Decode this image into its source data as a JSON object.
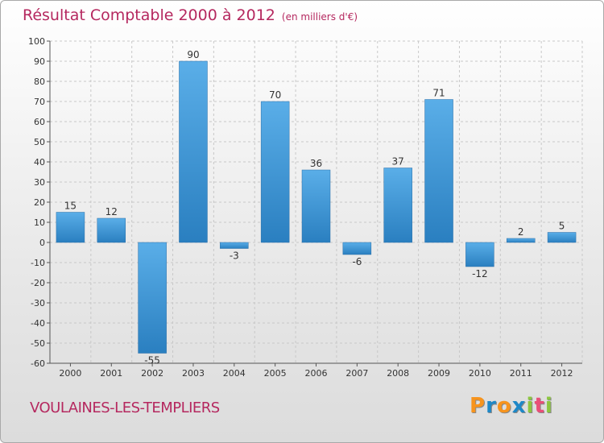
{
  "header": {
    "title": "Résultat Comptable 2000 à 2012",
    "subtitle": "(en milliers d'€)"
  },
  "footer": {
    "city": "VOULAINES-LES-TEMPLIERS",
    "logo_letters": [
      "P",
      "r",
      "o",
      "x",
      "i",
      "t",
      "i"
    ],
    "logo_colors": [
      "#f7941d",
      "#1e88c7",
      "#f7941d",
      "#1e88c7",
      "#8cc63f",
      "#e94e77",
      "#8cc63f"
    ]
  },
  "colors": {
    "bar_top": "#5aaee8",
    "bar_bottom": "#2a7fc0",
    "grid": "#c8c8c8",
    "text": "#333333"
  },
  "chart_data": {
    "type": "bar",
    "title": "Résultat Comptable 2000 à 2012",
    "subtitle": "(en milliers d'€)",
    "xlabel": "",
    "ylabel": "",
    "categories": [
      "2000",
      "2001",
      "2002",
      "2003",
      "2004",
      "2005",
      "2006",
      "2007",
      "2008",
      "2009",
      "2010",
      "2011",
      "2012"
    ],
    "values": [
      15,
      12,
      -55,
      90,
      -3,
      70,
      36,
      -6,
      37,
      71,
      -12,
      2,
      5
    ],
    "value_labels": [
      "15",
      "12",
      "-55",
      "90",
      "-3",
      "70",
      "36",
      "-6",
      "37",
      "71",
      "-12",
      "2",
      "5"
    ],
    "ylim": [
      -60,
      100
    ],
    "yticks": [
      100,
      90,
      80,
      70,
      60,
      50,
      40,
      30,
      20,
      10,
      0,
      -10,
      -20,
      -30,
      -40,
      -50,
      -60
    ],
    "grid": true
  }
}
